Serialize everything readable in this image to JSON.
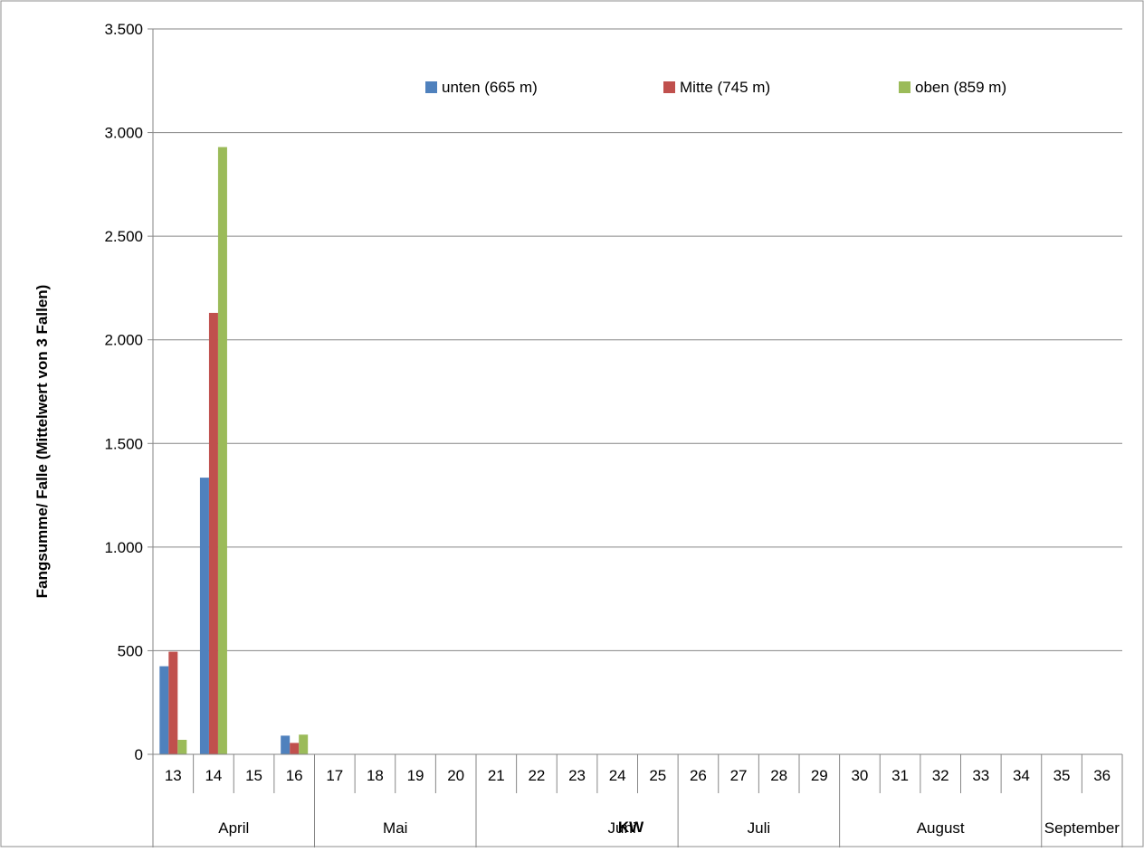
{
  "chart_data": {
    "type": "bar",
    "title": "",
    "xlabel": "KW",
    "ylabel": "Fangsumme/ Falle (Mittelwert von 3 Fallen)",
    "ylim": [
      0,
      3500
    ],
    "yticks": [
      0,
      500,
      1000,
      1500,
      2000,
      2500,
      3000,
      3500
    ],
    "ytick_labels": [
      "0",
      "500",
      "1.000",
      "1.500",
      "2.000",
      "2.500",
      "3.000",
      "3.500"
    ],
    "grid": true,
    "legend_position": "top",
    "categories": [
      "13",
      "14",
      "15",
      "16",
      "17",
      "18",
      "19",
      "20",
      "21",
      "22",
      "23",
      "24",
      "25",
      "26",
      "27",
      "28",
      "29",
      "30",
      "31",
      "32",
      "33",
      "34",
      "35",
      "36"
    ],
    "months": [
      {
        "label": "April",
        "start": 0,
        "end": 4
      },
      {
        "label": "Mai",
        "start": 4,
        "end": 8
      },
      {
        "label": "Juni",
        "start": 8,
        "end": 13
      },
      {
        "label": "Juli",
        "start": 13,
        "end": 17
      },
      {
        "label": "August",
        "start": 17,
        "end": 22
      },
      {
        "label": "September",
        "start": 22,
        "end": 24
      }
    ],
    "series": [
      {
        "name": "unten (665 m)",
        "color": "#4F81BD",
        "values": [
          425,
          1335,
          0,
          90,
          0,
          0,
          0,
          0,
          0,
          0,
          0,
          0,
          0,
          0,
          0,
          0,
          0,
          0,
          0,
          0,
          0,
          0,
          0,
          0
        ]
      },
      {
        "name": "Mitte (745 m)",
        "color": "#C0504D",
        "values": [
          495,
          2130,
          0,
          55,
          0,
          0,
          0,
          0,
          0,
          0,
          0,
          0,
          0,
          0,
          0,
          0,
          0,
          0,
          0,
          0,
          0,
          0,
          0,
          0
        ]
      },
      {
        "name": "oben (859 m)",
        "color": "#9BBB59",
        "values": [
          70,
          2930,
          0,
          95,
          0,
          0,
          0,
          0,
          0,
          0,
          0,
          0,
          0,
          0,
          0,
          0,
          0,
          0,
          0,
          0,
          0,
          0,
          0,
          0
        ]
      }
    ]
  }
}
